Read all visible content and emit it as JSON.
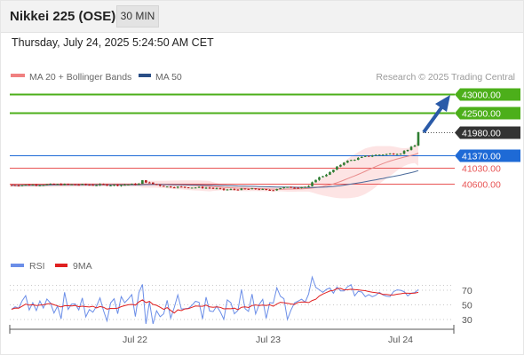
{
  "header": {
    "title": "Nikkei 225 (OSE)",
    "timeframe": "30 MIN"
  },
  "timestamp": "Thursday, July 24, 2025 5:24:50 AM CET",
  "legend": {
    "bollinger": "MA 20 + Bollinger Bands",
    "ma50": "MA 50",
    "rsi": "RSI",
    "ma9": "9MA"
  },
  "source": "Research © 2025 Trading Central",
  "colors": {
    "up": "#2e7d32",
    "down": "#b71c1c",
    "target": "#4caf1a",
    "pivot": "#1e6ad6",
    "support": "#e85454",
    "current": "#333333",
    "arrow": "#2a5aa8",
    "bollinger": "#f08080",
    "ma50": "#4a6a9a",
    "rsi": "#6b8ee8",
    "ma9": "#e02020"
  },
  "chart_data": [
    {
      "type": "candlestick",
      "x_labels": [
        "Jul 22",
        "Jul 23",
        "Jul 24"
      ],
      "ylim": [
        39800,
        43200
      ],
      "levels": [
        {
          "label": "43000.00",
          "value": 43000,
          "kind": "target"
        },
        {
          "label": "42500.00",
          "value": 42500,
          "kind": "target"
        },
        {
          "label": "41980.00",
          "value": 41980,
          "kind": "current"
        },
        {
          "label": "41370.00",
          "value": 41370,
          "kind": "pivot"
        },
        {
          "label": "41030.00",
          "value": 41030,
          "kind": "support"
        },
        {
          "label": "40600.00",
          "value": 40600,
          "kind": "support"
        }
      ],
      "series": [
        {
          "name": "MA 20 + Bollinger Bands"
        },
        {
          "name": "MA 50"
        }
      ]
    },
    {
      "type": "line",
      "yticks": [
        "70",
        "50",
        "30"
      ],
      "ylim": [
        20,
        90
      ],
      "series": [
        {
          "name": "RSI"
        },
        {
          "name": "9MA"
        }
      ]
    }
  ]
}
